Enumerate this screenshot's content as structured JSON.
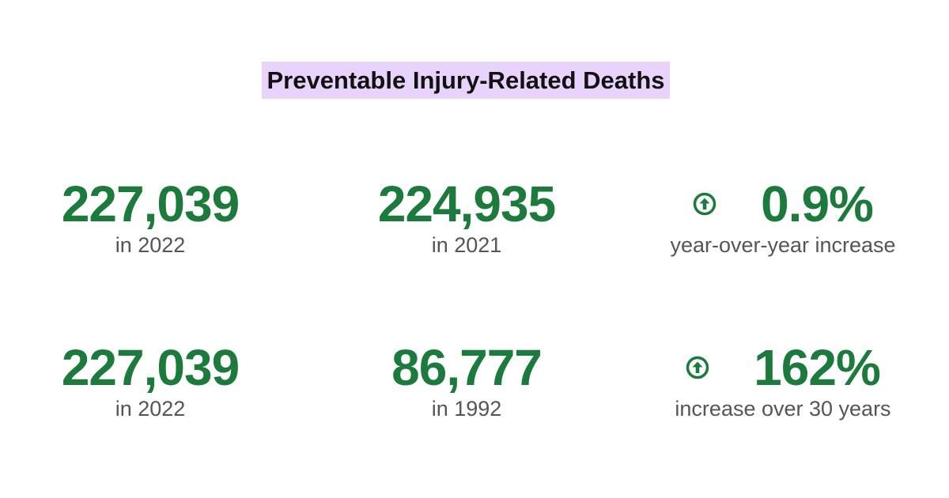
{
  "title": "Preventable Injury-Related Deaths",
  "rows": [
    {
      "left": {
        "value": "227,039",
        "label": "in 2022"
      },
      "mid": {
        "value": "224,935",
        "label": "in 2021"
      },
      "change": {
        "icon": "arrow-up-circle-icon",
        "value": "0.9%",
        "label": "year-over-year increase"
      }
    },
    {
      "left": {
        "value": "227,039",
        "label": "in 2022"
      },
      "mid": {
        "value": "86,777",
        "label": "in 1992"
      },
      "change": {
        "icon": "arrow-up-circle-icon",
        "value": "162%",
        "label": "increase over 30 years"
      }
    }
  ],
  "colors": {
    "accent_green": "#1c7a3c",
    "title_highlight": "#e8d4fb",
    "label_gray": "#555555"
  }
}
